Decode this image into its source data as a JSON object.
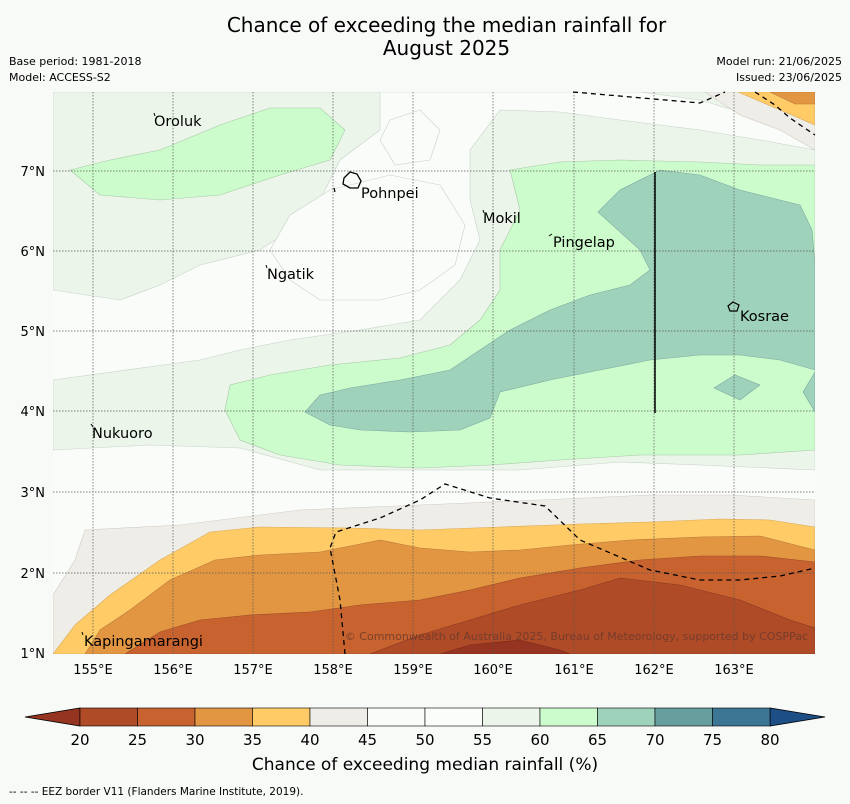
{
  "header": {
    "title_line1": "Chance of exceeding the median rainfall for",
    "title_line2": "August 2025",
    "base_period": "Base period: 1981-2018",
    "model": "Model: ACCESS-S2",
    "model_run": "Model run: 21/06/2025",
    "issued": "Issued: 23/06/2025"
  },
  "map": {
    "lon_ticks": [
      "155°E",
      "156°E",
      "157°E",
      "158°E",
      "159°E",
      "160°E",
      "161°E",
      "162°E",
      "163°E"
    ],
    "lat_ticks": [
      "7°N",
      "6°N",
      "5°N",
      "4°N",
      "3°N",
      "2°N",
      "1°N"
    ],
    "places": [
      {
        "name": "Oroluk",
        "id": "oroluk"
      },
      {
        "name": "Pohnpei",
        "id": "pohnpei"
      },
      {
        "name": "Mokil",
        "id": "mokil"
      },
      {
        "name": "Pingelap",
        "id": "pingelap"
      },
      {
        "name": "Ngatik",
        "id": "ngatik"
      },
      {
        "name": "Kosrae",
        "id": "kosrae"
      },
      {
        "name": "Nukuoro",
        "id": "nukuoro"
      },
      {
        "name": "Kapingamarangi",
        "id": "kapingamarangi"
      }
    ],
    "copyright": "© Commonwealth of Australia 2025, Bureau of Meteorology, supported by COSPPac"
  },
  "colorbar": {
    "ticks": [
      "20",
      "25",
      "30",
      "35",
      "40",
      "45",
      "50",
      "55",
      "60",
      "65",
      "70",
      "75",
      "80"
    ],
    "colors": [
      "#b04b28",
      "#c8632f",
      "#e29641",
      "#fecb67",
      "#efede8",
      "#f9fcf9",
      "#fbfdfb",
      "#ebf5ea",
      "#cdfccc",
      "#9ed2bb",
      "#679f9f",
      "#3d7595"
    ],
    "under_color": "#953421",
    "over_color": "#1d4e85",
    "label": "Chance of exceeding median rainfall (%)"
  },
  "footer": "--  --  -- EEZ border V11 (Flanders Marine Institute, 2019)."
}
